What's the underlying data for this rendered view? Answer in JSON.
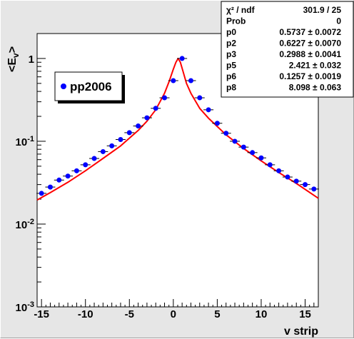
{
  "chart_data": {
    "type": "scatter",
    "xlabel": "v strip",
    "ylabel": "<E",
    "ylabel_sub": "v",
    "ylabel_end": ">",
    "xlim": [
      -15.5,
      16.5
    ],
    "ylim": [
      0.001,
      2
    ],
    "yscale": "log",
    "grid": false,
    "x_ticks": [
      -15,
      -10,
      -5,
      0,
      5,
      10,
      15
    ],
    "y_ticks": [
      {
        "value": 1,
        "base": "1",
        "exp": ""
      },
      {
        "value": 0.1,
        "base": "10",
        "exp": "-1"
      },
      {
        "value": 0.01,
        "base": "10",
        "exp": "-2"
      },
      {
        "value": 0.001,
        "base": "10",
        "exp": "-3"
      }
    ],
    "series": [
      {
        "name": "pp2006",
        "color": "#0000ff",
        "x": [
          -15,
          -14,
          -13,
          -12,
          -11,
          -10,
          -9,
          -8,
          -7,
          -6,
          -5,
          -4,
          -3,
          -2,
          -1,
          0,
          1,
          2,
          3,
          4,
          5,
          6,
          7,
          8,
          9,
          10,
          11,
          12,
          13,
          14,
          15,
          16
        ],
        "y": [
          0.0235,
          0.028,
          0.034,
          0.038,
          0.044,
          0.052,
          0.062,
          0.075,
          0.088,
          0.105,
          0.127,
          0.153,
          0.192,
          0.25,
          0.335,
          0.54,
          1.0,
          0.54,
          0.335,
          0.24,
          0.165,
          0.125,
          0.1,
          0.085,
          0.073,
          0.063,
          0.052,
          0.044,
          0.037,
          0.033,
          0.03,
          0.0265
        ]
      }
    ],
    "fit": {
      "color": "#ff0000",
      "peak_x": 0.55,
      "x": [
        -15.5,
        -14,
        -12,
        -10,
        -8,
        -6,
        -4,
        -3,
        -2,
        -1,
        -0.5,
        0,
        0.3,
        0.55,
        0.8,
        1.1,
        1.5,
        2,
        3,
        4,
        6,
        8,
        10,
        12,
        14,
        16.5
      ],
      "y": [
        0.0195,
        0.024,
        0.032,
        0.044,
        0.062,
        0.088,
        0.135,
        0.175,
        0.24,
        0.38,
        0.52,
        0.74,
        0.9,
        1.0,
        0.9,
        0.7,
        0.5,
        0.38,
        0.25,
        0.19,
        0.12,
        0.082,
        0.058,
        0.042,
        0.031,
        0.0205
      ]
    },
    "stats": {
      "rows": [
        {
          "label": "χ² / ndf",
          "value": "301.9 / 25"
        },
        {
          "label": "Prob",
          "value": "0"
        },
        {
          "label": "p0",
          "value": "0.5737 ± 0.0072"
        },
        {
          "label": "p2",
          "value": "0.6227 ± 0.0070"
        },
        {
          "label": "p3",
          "value": "0.2988 ± 0.0041"
        },
        {
          "label": "p5",
          "value": "2.421 ± 0.032"
        },
        {
          "label": "p6",
          "value": "0.1257 ± 0.0019"
        },
        {
          "label": "p8",
          "value": "8.098 ± 0.063"
        }
      ]
    },
    "legend": {
      "label": "pp2006",
      "placement": "top-left"
    }
  }
}
